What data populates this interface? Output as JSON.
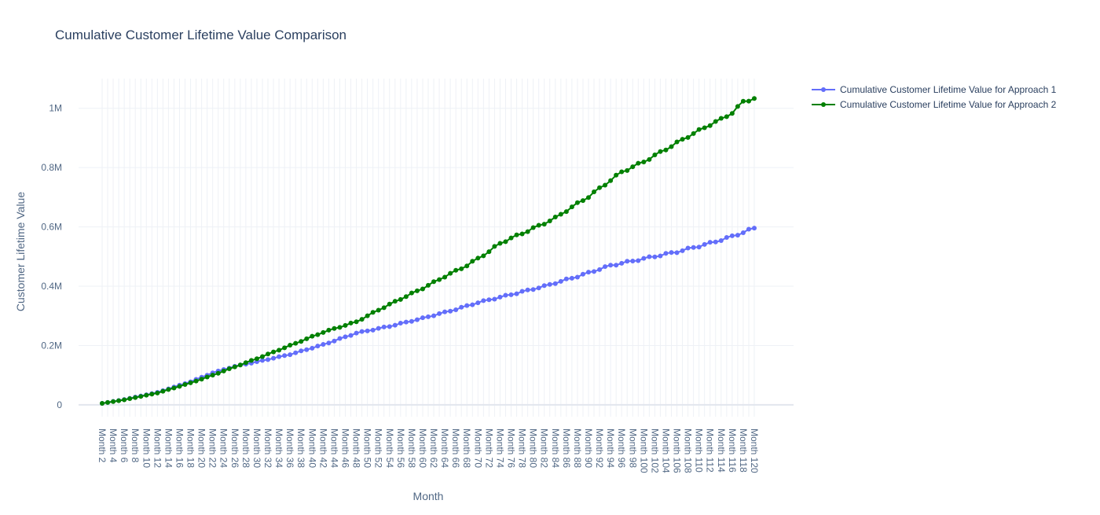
{
  "chart_data": {
    "type": "line",
    "title": "Cumulative Customer Lifetime Value Comparison",
    "xlabel": "Month",
    "ylabel": "Customer Lifetime Value",
    "ylim": [
      -40000,
      1100000
    ],
    "y_ticks": [
      0,
      200000,
      400000,
      600000,
      800000,
      1000000
    ],
    "y_tick_labels": [
      "0",
      "0.2M",
      "0.4M",
      "0.6M",
      "0.8M",
      "1M"
    ],
    "x_tick_labels": [
      "Month 2",
      "Month 4",
      "Month 6",
      "Month 8",
      "Month 10",
      "Month 12",
      "Month 14",
      "Month 16",
      "Month 18",
      "Month 20",
      "Month 22",
      "Month 24",
      "Month 26",
      "Month 28",
      "Month 30",
      "Month 32",
      "Month 34",
      "Month 36",
      "Month 38",
      "Month 40",
      "Month 42",
      "Month 44",
      "Month 46",
      "Month 48",
      "Month 50",
      "Month 52",
      "Month 54",
      "Month 56",
      "Month 58",
      "Month 60",
      "Month 62",
      "Month 64",
      "Month 66",
      "Month 68",
      "Month 70",
      "Month 72",
      "Month 74",
      "Month 76",
      "Month 78",
      "Month 80",
      "Month 82",
      "Month 84",
      "Month 86",
      "Month 88",
      "Month 90",
      "Month 92",
      "Month 94",
      "Month 96",
      "Month 98",
      "Month 100",
      "Month 102",
      "Month 104",
      "Month 106",
      "Month 108",
      "Month 110",
      "Month 112",
      "Month 114",
      "Month 116",
      "Month 118",
      "Month 120"
    ],
    "grid": true,
    "legend_position": "top-right",
    "series": [
      {
        "name": "Cumulative Customer Lifetime Value for Approach 1",
        "color": "#636efa",
        "anchors": [
          [
            2,
            5000
          ],
          [
            6,
            18000
          ],
          [
            12,
            42000
          ],
          [
            18,
            78000
          ],
          [
            22,
            108000
          ],
          [
            26,
            130000
          ],
          [
            30,
            145000
          ],
          [
            36,
            170000
          ],
          [
            42,
            203000
          ],
          [
            48,
            242000
          ],
          [
            54,
            265000
          ],
          [
            60,
            292000
          ],
          [
            66,
            322000
          ],
          [
            70,
            345000
          ],
          [
            76,
            372000
          ],
          [
            82,
            400000
          ],
          [
            88,
            433000
          ],
          [
            94,
            470000
          ],
          [
            100,
            493000
          ],
          [
            106,
            516000
          ],
          [
            112,
            545000
          ],
          [
            116,
            568000
          ],
          [
            120,
            596000
          ]
        ]
      },
      {
        "name": "Cumulative Customer Lifetime Value for Approach 2",
        "color": "#008000",
        "anchors": [
          [
            2,
            5000
          ],
          [
            6,
            17000
          ],
          [
            12,
            40000
          ],
          [
            18,
            74000
          ],
          [
            22,
            100000
          ],
          [
            26,
            128000
          ],
          [
            30,
            156000
          ],
          [
            36,
            200000
          ],
          [
            42,
            245000
          ],
          [
            48,
            280000
          ],
          [
            52,
            320000
          ],
          [
            56,
            357000
          ],
          [
            60,
            393000
          ],
          [
            64,
            433000
          ],
          [
            68,
            470000
          ],
          [
            72,
            517000
          ],
          [
            74,
            545000
          ],
          [
            80,
            595000
          ],
          [
            84,
            630000
          ],
          [
            86,
            655000
          ],
          [
            90,
            702000
          ],
          [
            92,
            730000
          ],
          [
            96,
            785000
          ],
          [
            100,
            820000
          ],
          [
            104,
            862000
          ],
          [
            108,
            905000
          ],
          [
            112,
            945000
          ],
          [
            114,
            963000
          ],
          [
            116,
            985000
          ],
          [
            118,
            1022000
          ],
          [
            120,
            1033000
          ]
        ]
      }
    ]
  }
}
